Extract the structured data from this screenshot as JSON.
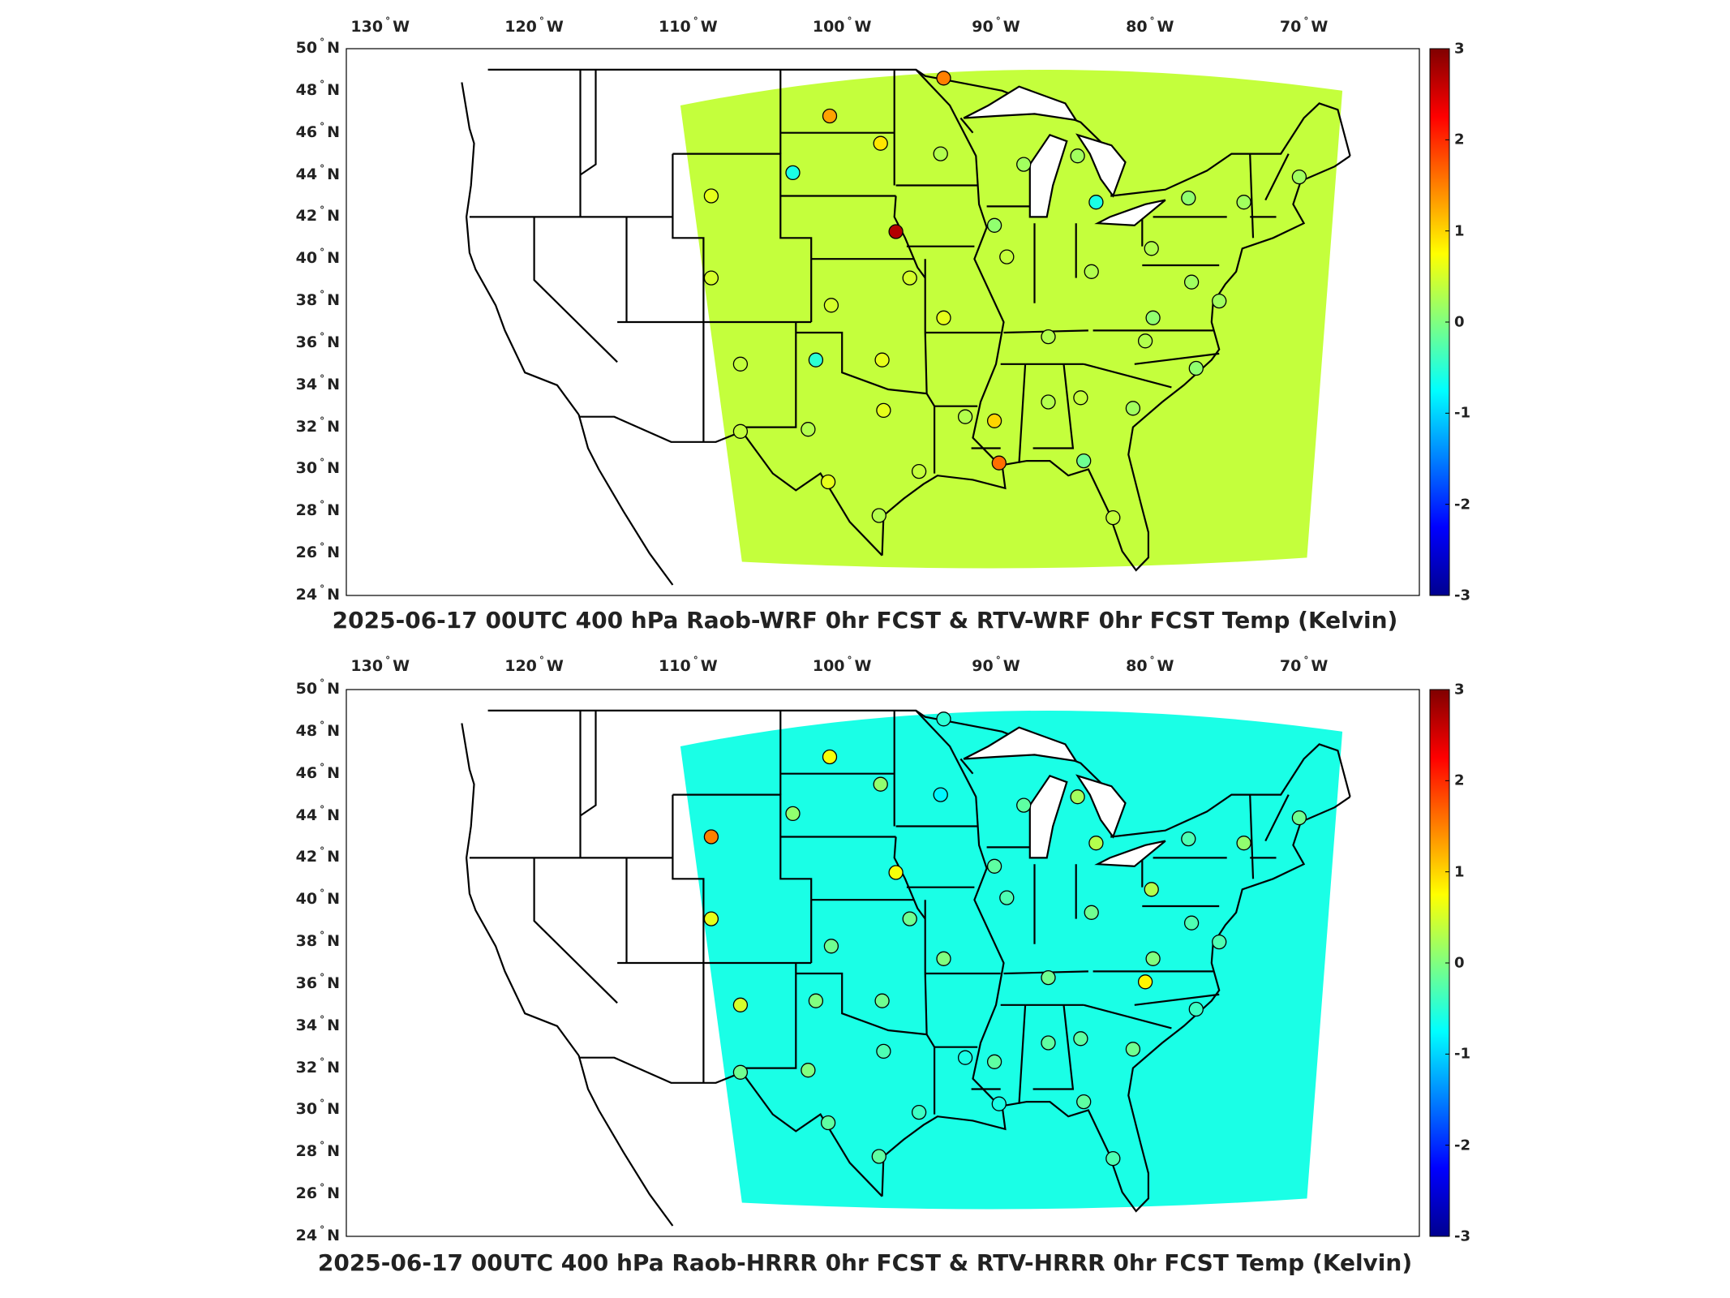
{
  "colors": {
    "ocean": "#ffffff",
    "outline": "#000000",
    "colormap": [
      "#00008f",
      "#0000ff",
      "#0080ff",
      "#00ffff",
      "#80ff80",
      "#ffff00",
      "#ff8000",
      "#ff0000",
      "#800000"
    ]
  },
  "axes": {
    "lon_labels": [
      "130",
      "120",
      "110",
      "100",
      "90",
      "80",
      "70"
    ],
    "lon_suffix": "W",
    "lat_labels": [
      "50",
      "48",
      "46",
      "44",
      "42",
      "40",
      "38",
      "36",
      "34",
      "32",
      "30",
      "28",
      "26",
      "24"
    ],
    "lat_suffix": "N",
    "degree_symbol": "°"
  },
  "colorbar": {
    "ticks": [
      "3",
      "2",
      "1",
      "0",
      "-1",
      "-2",
      "-3"
    ],
    "range": [
      -3,
      3
    ]
  },
  "panels": [
    {
      "title": "2025-06-17 00UTC 400 hPa Raob-WRF 0hr FCST & RTV-WRF 0hr FCST Temp (Kelvin)",
      "field_base_value": 0.4,
      "stations": [
        {
          "lon": -93.4,
          "lat": 48.6,
          "value": 1.5
        },
        {
          "lon": -100.8,
          "lat": 46.8,
          "value": 1.3
        },
        {
          "lon": -97.5,
          "lat": 45.5,
          "value": 0.9
        },
        {
          "lon": -93.6,
          "lat": 45.0,
          "value": 0.3
        },
        {
          "lon": -103.2,
          "lat": 44.1,
          "value": -0.6
        },
        {
          "lon": -108.5,
          "lat": 43.0,
          "value": 0.6
        },
        {
          "lon": -96.5,
          "lat": 41.3,
          "value": 2.7
        },
        {
          "lon": -90.1,
          "lat": 41.6,
          "value": 0.1
        },
        {
          "lon": -88.2,
          "lat": 44.5,
          "value": 0.2
        },
        {
          "lon": -84.7,
          "lat": 44.9,
          "value": 0.2
        },
        {
          "lon": -83.5,
          "lat": 42.7,
          "value": -0.6
        },
        {
          "lon": -79.9,
          "lat": 40.5,
          "value": 0.3
        },
        {
          "lon": -77.5,
          "lat": 42.9,
          "value": 0.1
        },
        {
          "lon": -73.9,
          "lat": 42.7,
          "value": 0.2
        },
        {
          "lon": -70.3,
          "lat": 43.9,
          "value": 0.2
        },
        {
          "lon": -89.3,
          "lat": 40.1,
          "value": 0.4
        },
        {
          "lon": -83.8,
          "lat": 39.4,
          "value": 0.3
        },
        {
          "lon": -95.6,
          "lat": 39.1,
          "value": 0.5
        },
        {
          "lon": -108.5,
          "lat": 39.1,
          "value": 0.5
        },
        {
          "lon": -100.7,
          "lat": 37.8,
          "value": 0.5
        },
        {
          "lon": -93.4,
          "lat": 37.2,
          "value": 0.6
        },
        {
          "lon": -86.6,
          "lat": 36.3,
          "value": 0.3
        },
        {
          "lon": -80.3,
          "lat": 36.1,
          "value": 0.3
        },
        {
          "lon": -79.8,
          "lat": 37.2,
          "value": 0.1
        },
        {
          "lon": -77.3,
          "lat": 38.9,
          "value": 0.2
        },
        {
          "lon": -75.5,
          "lat": 38.0,
          "value": 0.2
        },
        {
          "lon": -106.6,
          "lat": 35.0,
          "value": 0.4
        },
        {
          "lon": -101.7,
          "lat": 35.2,
          "value": -0.5
        },
        {
          "lon": -97.4,
          "lat": 35.2,
          "value": 0.6
        },
        {
          "lon": -77.0,
          "lat": 34.8,
          "value": 0.1
        },
        {
          "lon": -97.3,
          "lat": 32.8,
          "value": 0.6
        },
        {
          "lon": -92.0,
          "lat": 32.5,
          "value": 0.3
        },
        {
          "lon": -90.1,
          "lat": 32.3,
          "value": 1.0
        },
        {
          "lon": -86.6,
          "lat": 33.2,
          "value": 0.3
        },
        {
          "lon": -84.5,
          "lat": 33.4,
          "value": 0.4
        },
        {
          "lon": -81.1,
          "lat": 32.9,
          "value": 0.2
        },
        {
          "lon": -106.6,
          "lat": 31.8,
          "value": 0.4
        },
        {
          "lon": -102.2,
          "lat": 31.9,
          "value": 0.3
        },
        {
          "lon": -95.0,
          "lat": 29.9,
          "value": 0.4
        },
        {
          "lon": -89.8,
          "lat": 30.3,
          "value": 1.6
        },
        {
          "lon": -84.3,
          "lat": 30.4,
          "value": -0.1
        },
        {
          "lon": -100.9,
          "lat": 29.4,
          "value": 0.6
        },
        {
          "lon": -97.6,
          "lat": 27.8,
          "value": 0.3
        },
        {
          "lon": -82.4,
          "lat": 27.7,
          "value": 0.4
        }
      ]
    },
    {
      "title": "2025-06-17 00UTC 400 hPa Raob-HRRR 0hr FCST & RTV-HRRR 0hr FCST Temp (Kelvin)",
      "field_base_value": -0.6,
      "stations": [
        {
          "lon": -93.4,
          "lat": 48.6,
          "value": -0.5
        },
        {
          "lon": -100.8,
          "lat": 46.8,
          "value": 0.7
        },
        {
          "lon": -97.5,
          "lat": 45.5,
          "value": 0.1
        },
        {
          "lon": -93.6,
          "lat": 45.0,
          "value": -0.8
        },
        {
          "lon": -103.2,
          "lat": 44.1,
          "value": 0.1
        },
        {
          "lon": -108.5,
          "lat": 43.0,
          "value": 1.5
        },
        {
          "lon": -96.5,
          "lat": 41.3,
          "value": 0.7
        },
        {
          "lon": -90.1,
          "lat": 41.6,
          "value": -0.2
        },
        {
          "lon": -88.2,
          "lat": 44.5,
          "value": -0.2
        },
        {
          "lon": -84.7,
          "lat": 44.9,
          "value": 0.2
        },
        {
          "lon": -83.5,
          "lat": 42.7,
          "value": 0.3
        },
        {
          "lon": -79.9,
          "lat": 40.5,
          "value": 0.3
        },
        {
          "lon": -77.5,
          "lat": 42.9,
          "value": -0.3
        },
        {
          "lon": -73.9,
          "lat": 42.7,
          "value": 0.1
        },
        {
          "lon": -70.3,
          "lat": 43.9,
          "value": -0.1
        },
        {
          "lon": -89.3,
          "lat": 40.1,
          "value": -0.3
        },
        {
          "lon": -83.8,
          "lat": 39.4,
          "value": -0.1
        },
        {
          "lon": -95.6,
          "lat": 39.1,
          "value": -0.1
        },
        {
          "lon": -108.5,
          "lat": 39.1,
          "value": 0.6
        },
        {
          "lon": -100.7,
          "lat": 37.8,
          "value": -0.1
        },
        {
          "lon": -93.4,
          "lat": 37.2,
          "value": 0.0
        },
        {
          "lon": -86.6,
          "lat": 36.3,
          "value": -0.1
        },
        {
          "lon": -80.3,
          "lat": 36.1,
          "value": 0.8
        },
        {
          "lon": -79.8,
          "lat": 37.2,
          "value": 0.0
        },
        {
          "lon": -77.3,
          "lat": 38.9,
          "value": -0.3
        },
        {
          "lon": -75.5,
          "lat": 38.0,
          "value": -0.3
        },
        {
          "lon": -106.6,
          "lat": 35.0,
          "value": 0.5
        },
        {
          "lon": -101.7,
          "lat": 35.2,
          "value": 0.0
        },
        {
          "lon": -97.4,
          "lat": 35.2,
          "value": -0.1
        },
        {
          "lon": -77.0,
          "lat": 34.8,
          "value": -0.4
        },
        {
          "lon": -97.3,
          "lat": 32.8,
          "value": -0.3
        },
        {
          "lon": -92.0,
          "lat": 32.5,
          "value": -0.6
        },
        {
          "lon": -90.1,
          "lat": 32.3,
          "value": -0.2
        },
        {
          "lon": -86.6,
          "lat": 33.2,
          "value": -0.2
        },
        {
          "lon": -84.5,
          "lat": 33.4,
          "value": -0.2
        },
        {
          "lon": -81.1,
          "lat": 32.9,
          "value": -0.1
        },
        {
          "lon": -106.6,
          "lat": 31.8,
          "value": -0.1
        },
        {
          "lon": -102.2,
          "lat": 31.9,
          "value": 0.0
        },
        {
          "lon": -95.0,
          "lat": 29.9,
          "value": -0.4
        },
        {
          "lon": -89.8,
          "lat": 30.3,
          "value": -0.6
        },
        {
          "lon": -84.3,
          "lat": 30.4,
          "value": -0.2
        },
        {
          "lon": -100.9,
          "lat": 29.4,
          "value": -0.2
        },
        {
          "lon": -97.6,
          "lat": 27.8,
          "value": -0.2
        },
        {
          "lon": -82.4,
          "lat": 27.7,
          "value": -0.3
        }
      ]
    }
  ]
}
